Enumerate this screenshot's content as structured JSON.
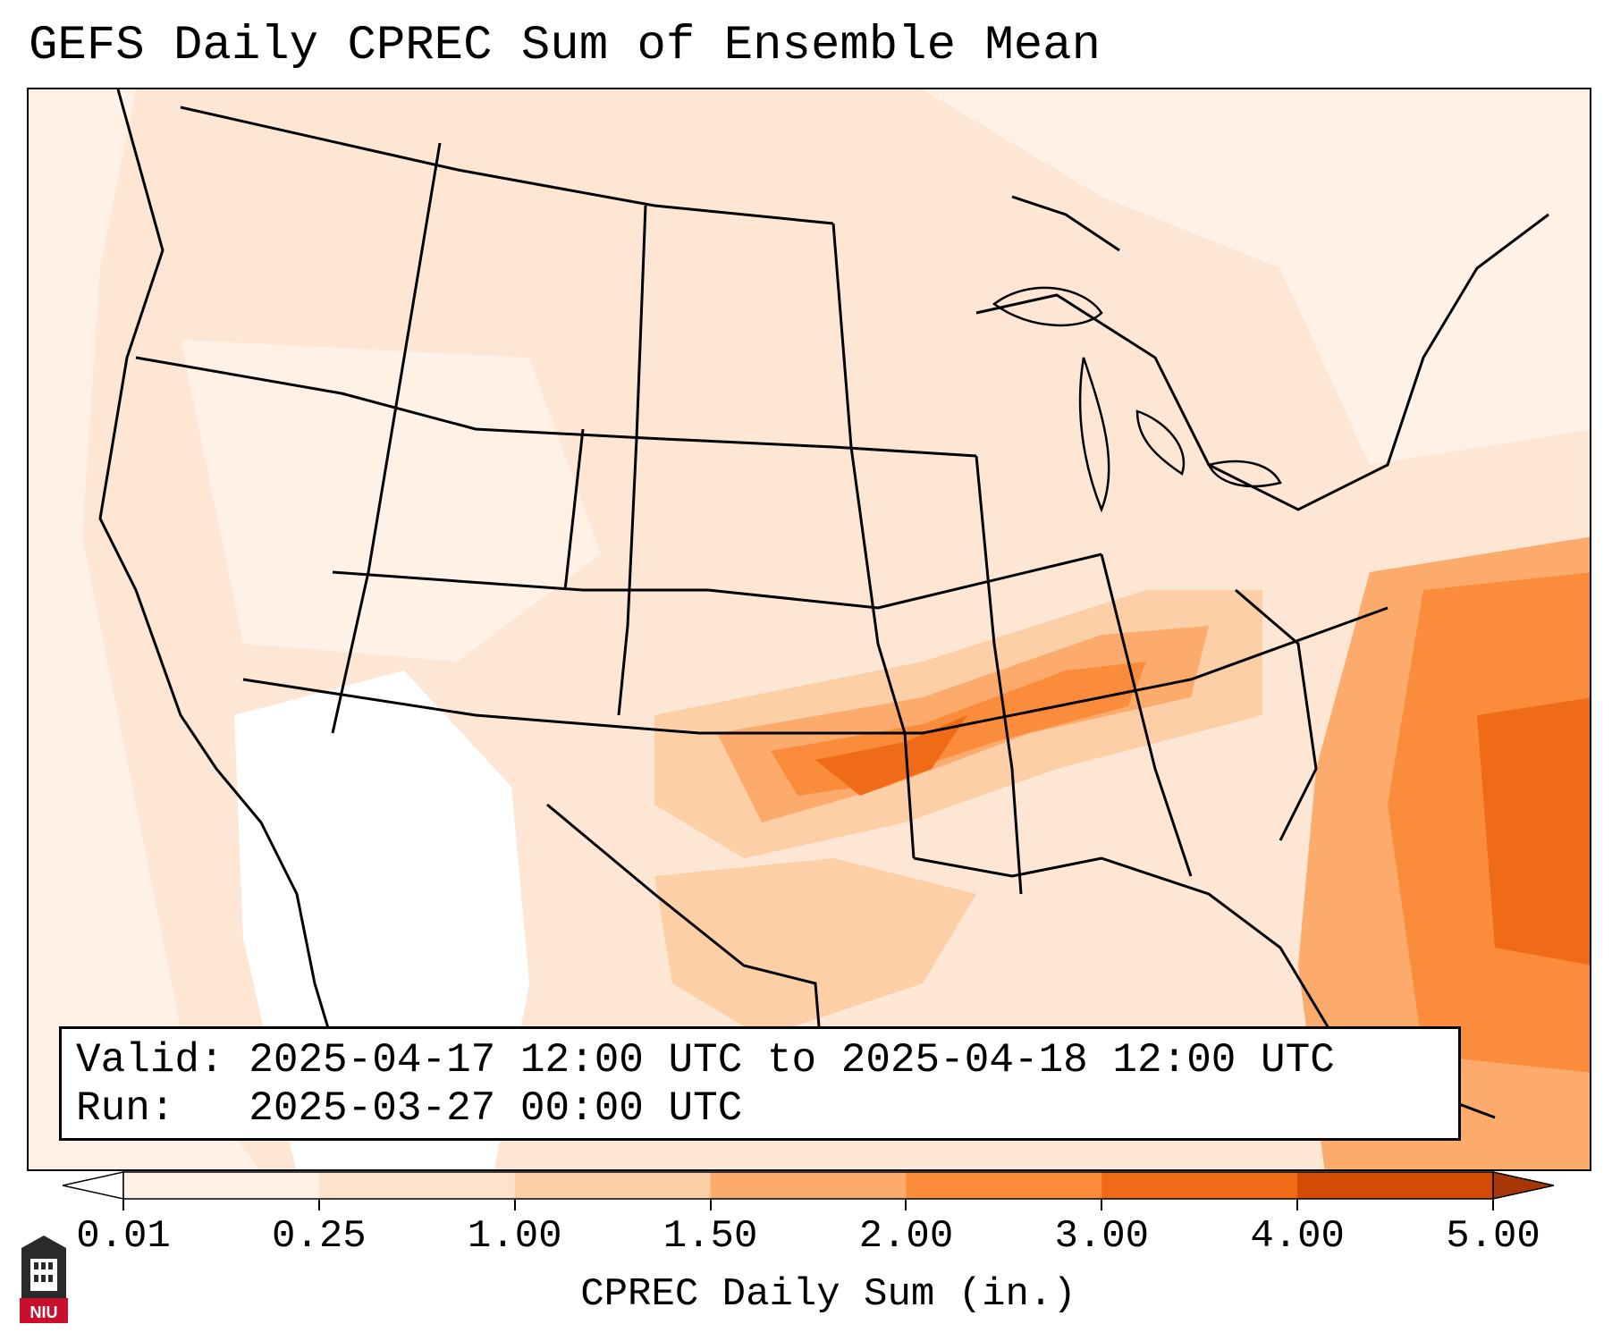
{
  "title": "GEFS Daily CPREC Sum of Ensemble Mean",
  "info": {
    "valid_line": "Valid: 2025-04-17 12:00 UTC to 2025-04-18 12:00 UTC",
    "run_line": "Run:   2025-03-27 00:00 UTC"
  },
  "colorbar": {
    "label": "CPREC Daily Sum (in.)",
    "ticks": [
      "0.01",
      "0.25",
      "1.00",
      "1.50",
      "2.00",
      "3.00",
      "4.00",
      "5.00"
    ],
    "colors": [
      "#fff1e6",
      "#fde3cc",
      "#fccfa6",
      "#fcab6c",
      "#fb8c3c",
      "#ef6b17",
      "#d44b05"
    ],
    "under_color": "#ffffff",
    "over_color": "#a63603"
  },
  "map": {
    "projection": "lambert-conformal-conus",
    "field": "CPREC daily sum, ensemble mean",
    "coastline_color": "#000000"
  },
  "logo": {
    "name": "NIU",
    "text": "NIU"
  }
}
